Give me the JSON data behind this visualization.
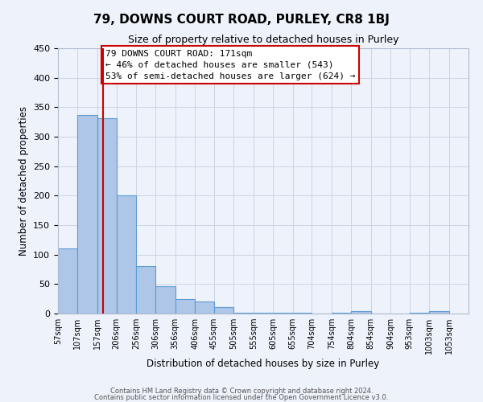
{
  "title": "79, DOWNS COURT ROAD, PURLEY, CR8 1BJ",
  "subtitle": "Size of property relative to detached houses in Purley",
  "xlabel": "Distribution of detached houses by size in Purley",
  "ylabel": "Number of detached properties",
  "bar_left_edges": [
    57,
    107,
    157,
    206,
    256,
    306,
    356,
    406,
    455,
    505,
    555,
    605,
    655,
    704,
    754,
    804,
    854,
    904,
    953,
    1003
  ],
  "bar_heights": [
    110,
    337,
    332,
    200,
    80,
    46,
    24,
    21,
    11,
    2,
    2,
    2,
    2,
    0,
    2,
    4,
    0,
    0,
    2,
    4
  ],
  "bar_widths": [
    50,
    50,
    49,
    50,
    50,
    50,
    50,
    49,
    50,
    50,
    50,
    50,
    49,
    50,
    50,
    50,
    50,
    49,
    50,
    50
  ],
  "bar_color": "#aec6e8",
  "bar_edge_color": "#5b9bd5",
  "vline_x": 171,
  "vline_color": "#cc0000",
  "annotation_text_line1": "79 DOWNS COURT ROAD: 171sqm",
  "annotation_text_line2": "← 46% of detached houses are smaller (543)",
  "annotation_text_line3": "53% of semi-detached houses are larger (624) →",
  "xlim": [
    57,
    1103
  ],
  "ylim": [
    0,
    450
  ],
  "yticks": [
    0,
    50,
    100,
    150,
    200,
    250,
    300,
    350,
    400,
    450
  ],
  "xtick_labels": [
    "57sqm",
    "107sqm",
    "157sqm",
    "206sqm",
    "256sqm",
    "306sqm",
    "356sqm",
    "406sqm",
    "455sqm",
    "505sqm",
    "555sqm",
    "605sqm",
    "655sqm",
    "704sqm",
    "754sqm",
    "804sqm",
    "854sqm",
    "904sqm",
    "953sqm",
    "1003sqm",
    "1053sqm"
  ],
  "xtick_positions": [
    57,
    107,
    157,
    206,
    256,
    306,
    356,
    406,
    455,
    505,
    555,
    605,
    655,
    704,
    754,
    804,
    854,
    904,
    953,
    1003,
    1053
  ],
  "grid_color": "#ccd4e4",
  "background_color": "#eef2fa",
  "footer_line1": "Contains HM Land Registry data © Crown copyright and database right 2024.",
  "footer_line2": "Contains public sector information licensed under the Open Government Licence v3.0."
}
